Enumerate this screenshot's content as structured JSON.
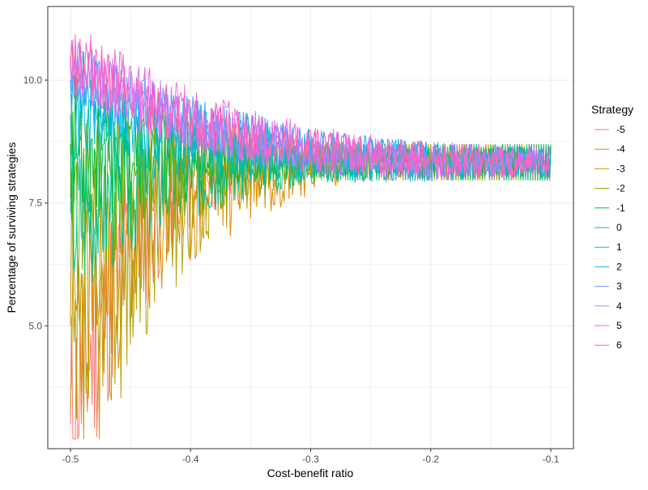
{
  "chart_data": {
    "type": "line",
    "title": "",
    "xlabel": "Cost-benefit ratio",
    "ylabel": "Percentage of surviving strategies",
    "xlim": [
      -0.5,
      -0.1
    ],
    "ylim": [
      2.5,
      11.5
    ],
    "x_ticks": [
      -0.5,
      -0.4,
      -0.3,
      -0.2,
      -0.1
    ],
    "x_tick_labels": [
      "-0.5",
      "-0.4",
      "-0.3",
      "-0.2",
      "-0.1"
    ],
    "y_ticks": [
      5.0,
      7.5,
      10.0
    ],
    "y_tick_labels": [
      "5.0",
      "7.5",
      "10.0"
    ],
    "grid": true,
    "legend_title": "Strategy",
    "legend_position": "right",
    "series": [
      {
        "name": "-5",
        "color": "#F8766D",
        "start": 3.0,
        "early_amp": 2.6,
        "late_amp": 0.35,
        "baseline": 8.33,
        "settle": -0.33,
        "seed": 11
      },
      {
        "name": "-4",
        "color": "#DE8C00",
        "start": 5.0,
        "early_amp": 2.8,
        "late_amp": 0.4,
        "baseline": 8.33,
        "settle": -0.26,
        "seed": 23
      },
      {
        "name": "-3",
        "color": "#B79F00",
        "start": 3.3,
        "early_amp": 3.0,
        "late_amp": 0.4,
        "baseline": 8.33,
        "settle": -0.3,
        "seed": 37
      },
      {
        "name": "-2",
        "color": "#7CAE00",
        "start": 7.6,
        "early_amp": 2.2,
        "late_amp": 0.35,
        "baseline": 8.33,
        "settle": -0.3,
        "seed": 41
      },
      {
        "name": "-1",
        "color": "#00BA38",
        "start": 8.7,
        "early_amp": 1.6,
        "late_amp": 0.3,
        "baseline": 8.33,
        "settle": -0.3,
        "seed": 53
      },
      {
        "name": "0",
        "color": "#00C08B",
        "start": 7.3,
        "early_amp": 1.8,
        "late_amp": 0.4,
        "baseline": 8.33,
        "settle": -0.28,
        "seed": 67
      },
      {
        "name": "1",
        "color": "#00BFC4",
        "start": 9.3,
        "early_amp": 0.9,
        "late_amp": 0.33,
        "baseline": 8.33,
        "settle": -0.1,
        "seed": 71
      },
      {
        "name": "2",
        "color": "#00B4F0",
        "start": 10.0,
        "early_amp": 0.8,
        "late_amp": 0.33,
        "baseline": 8.33,
        "settle": -0.1,
        "seed": 83
      },
      {
        "name": "3",
        "color": "#619CFF",
        "start": 10.3,
        "early_amp": 0.7,
        "late_amp": 0.33,
        "baseline": 8.33,
        "settle": -0.1,
        "seed": 97
      },
      {
        "name": "4",
        "color": "#C77CFF",
        "start": 10.3,
        "early_amp": 0.7,
        "late_amp": 0.33,
        "baseline": 8.33,
        "settle": -0.1,
        "seed": 101
      },
      {
        "name": "5",
        "color": "#F564E3",
        "start": 10.5,
        "early_amp": 0.8,
        "late_amp": 0.33,
        "baseline": 8.33,
        "settle": -0.1,
        "seed": 113
      },
      {
        "name": "6",
        "color": "#FF64B0",
        "start": 10.3,
        "early_amp": 0.7,
        "late_amp": 0.33,
        "baseline": 8.33,
        "settle": -0.1,
        "seed": 127
      }
    ]
  }
}
